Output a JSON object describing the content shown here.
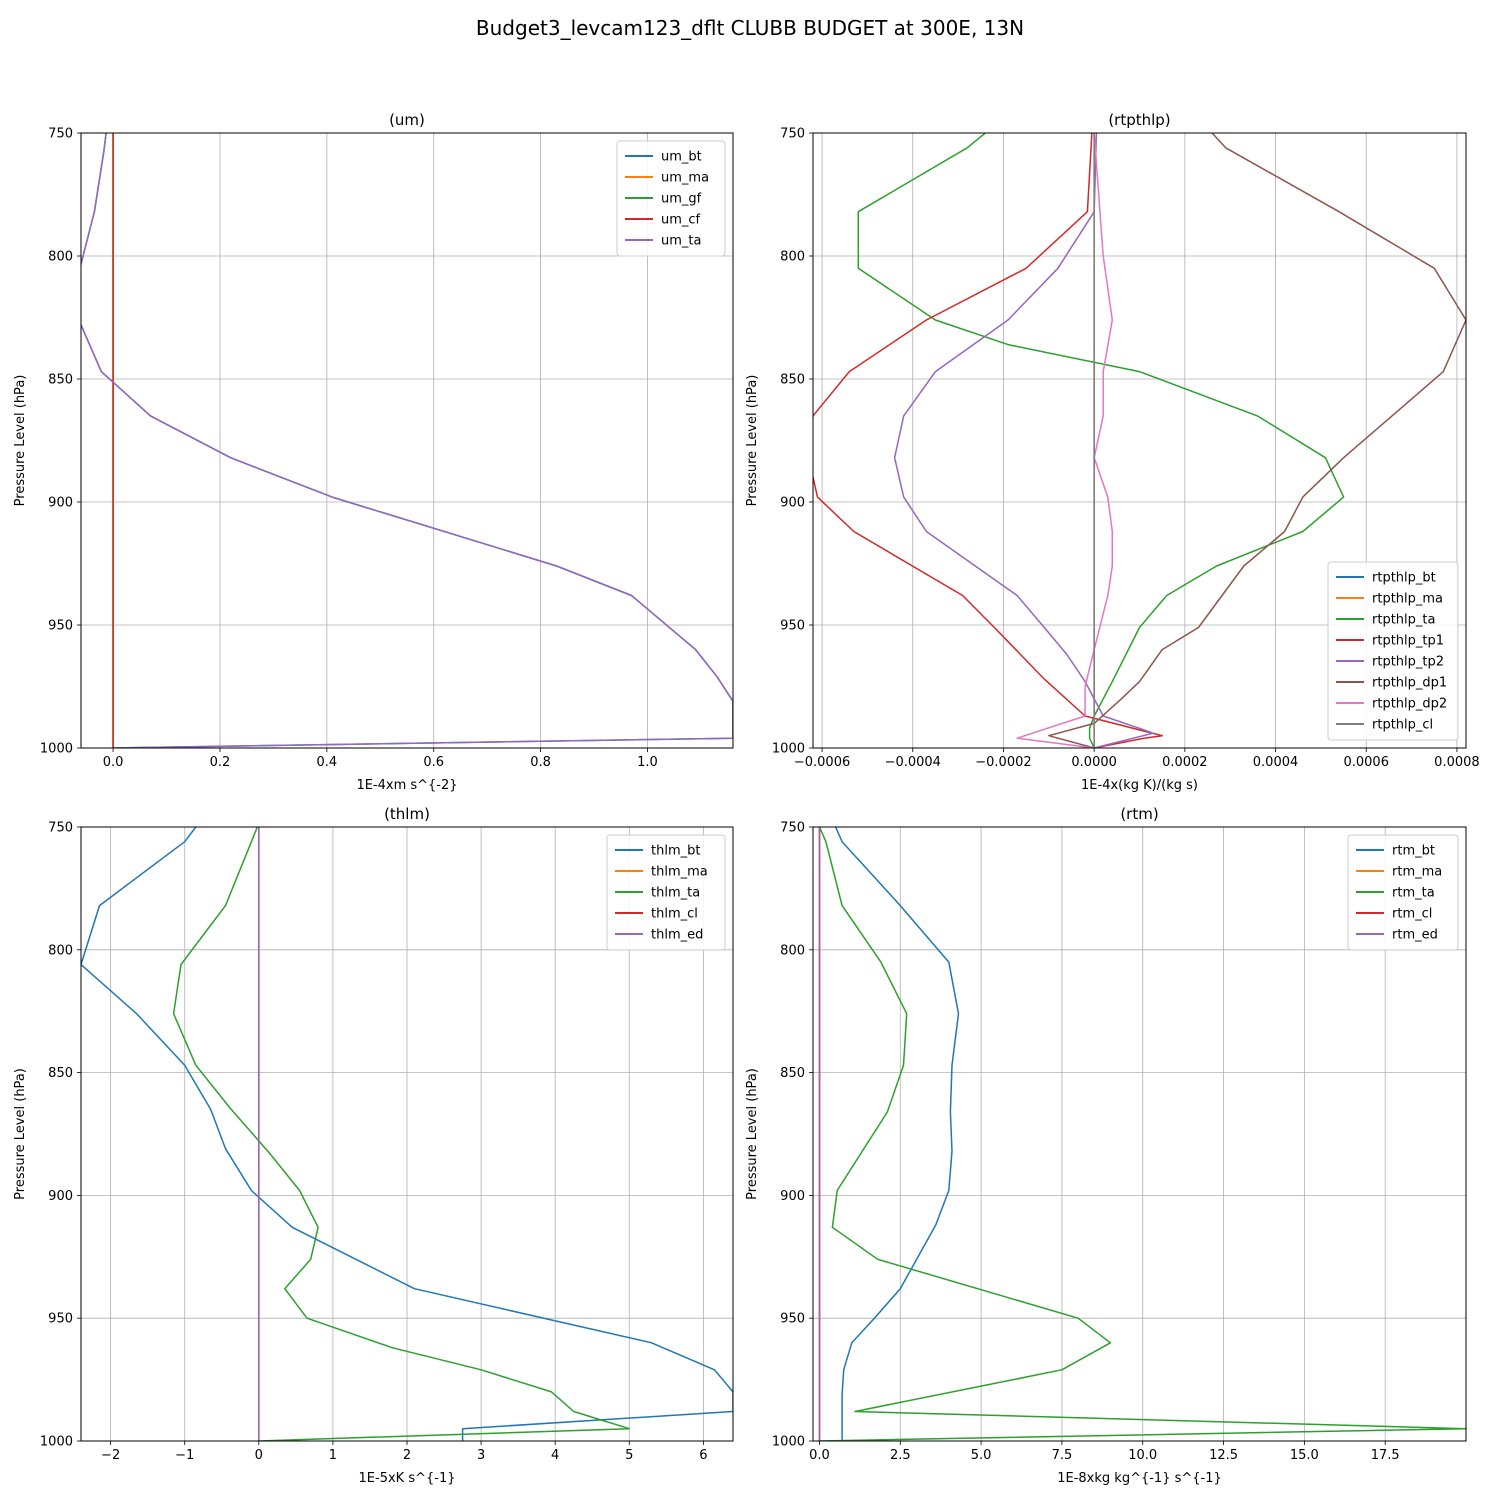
{
  "suptitle": "Budget3_levcam123_dflt CLUBB BUDGET at 300E, 13N",
  "chart_data": [
    {
      "type": "line",
      "title": "(um)",
      "xlabel": "1E-4xm s^{-2}",
      "ylabel": "Pressure Level (hPa)",
      "xlim": [
        -0.06,
        1.16
      ],
      "ylim": [
        1000,
        750
      ],
      "xticks": [
        0.0,
        0.2,
        0.4,
        0.6,
        0.8,
        1.0
      ],
      "xtick_labels": [
        "0.0",
        "0.2",
        "0.4",
        "0.6",
        "0.8",
        "1.0"
      ],
      "yticks": [
        750,
        800,
        850,
        900,
        950,
        1000
      ],
      "ytick_labels": [
        "750",
        "800",
        "850",
        "900",
        "950",
        "1000"
      ],
      "grid": true,
      "legend_position": "upper right",
      "series": [
        {
          "name": "um_bt",
          "color": "#1f77b4",
          "x": [
            -0.013,
            -0.017,
            -0.035,
            -0.062,
            -0.062,
            -0.022,
            0.07,
            0.22,
            0.41,
            0.83,
            0.97,
            1.09,
            1.13,
            1.16,
            1.16,
            0.0
          ],
          "y": [
            750,
            757,
            782,
            805,
            827,
            847,
            865,
            882,
            898,
            926,
            938,
            960,
            971,
            981,
            996,
            1000
          ]
        },
        {
          "name": "um_ma",
          "color": "#ff7f0e",
          "x": [
            0,
            0
          ],
          "y": [
            750,
            1000
          ]
        },
        {
          "name": "um_gf",
          "color": "#2ca02c",
          "x": [
            0,
            0
          ],
          "y": [
            750,
            1000
          ]
        },
        {
          "name": "um_cf",
          "color": "#d62728",
          "x": [
            0,
            0
          ],
          "y": [
            750,
            1000
          ]
        },
        {
          "name": "um_ta",
          "color": "#9467bd",
          "x": [
            -0.013,
            -0.017,
            -0.035,
            -0.062,
            -0.062,
            -0.022,
            0.07,
            0.22,
            0.41,
            0.83,
            0.97,
            1.09,
            1.13,
            1.16,
            1.16,
            0.0
          ],
          "y": [
            750,
            757,
            782,
            805,
            827,
            847,
            865,
            882,
            898,
            926,
            938,
            960,
            971,
            981,
            996,
            1000
          ]
        }
      ]
    },
    {
      "type": "line",
      "title": "(rtpthlp)",
      "xlabel": "1E-4x(kg K)/(kg s)",
      "ylabel": "Pressure Level (hPa)",
      "xlim": [
        -0.00062,
        0.00082
      ],
      "ylim": [
        1000,
        750
      ],
      "xticks": [
        -0.0006,
        -0.0004,
        -0.0002,
        0.0,
        0.0002,
        0.0004,
        0.0006,
        0.0008
      ],
      "xtick_labels": [
        "−0.0006",
        "−0.0004",
        "−0.0002",
        "0.0000",
        "0.0002",
        "0.0004",
        "0.0006",
        "0.0008"
      ],
      "yticks": [
        750,
        800,
        850,
        900,
        950,
        1000
      ],
      "ytick_labels": [
        "750",
        "800",
        "850",
        "900",
        "950",
        "1000"
      ],
      "grid": true,
      "legend_position": "lower right",
      "series": [
        {
          "name": "rtpthlp_bt",
          "color": "#1f77b4",
          "x": [
            0,
            0
          ],
          "y": [
            750,
            1000
          ]
        },
        {
          "name": "rtpthlp_ma",
          "color": "#ff7f0e",
          "x": [
            0,
            0
          ],
          "y": [
            750,
            1000
          ]
        },
        {
          "name": "rtpthlp_ta",
          "color": "#2ca02c",
          "x": [
            -0.00024,
            -0.00028,
            -0.00052,
            -0.00052,
            -0.00035,
            -0.00019,
            0.0001,
            0.00036,
            0.00051,
            0.00055,
            0.00046,
            0.00027,
            0.00016,
            0.0001,
            4e-05,
            0.0,
            -1e-05,
            -1e-05,
            0.0
          ],
          "y": [
            750,
            756,
            782,
            805,
            826,
            836,
            847,
            865,
            882,
            898,
            912,
            926,
            938,
            951,
            973,
            987,
            992,
            996,
            1000
          ]
        },
        {
          "name": "rtpthlp_tp1",
          "color": "#d62728",
          "x": [
            -5e-06,
            -1.5e-05,
            -0.00015,
            -0.00037,
            -0.00054,
            -0.00062,
            -0.00063,
            -0.00061,
            -0.00053,
            -0.00029,
            -0.00022,
            -0.00011,
            -2e-05,
            0.00015,
            0.00011,
            0.0
          ],
          "y": [
            750,
            782,
            805,
            826,
            847,
            865,
            882,
            898,
            912,
            938,
            951,
            972,
            987,
            995,
            996,
            1000
          ]
        },
        {
          "name": "rtpthlp_tp2",
          "color": "#9467bd",
          "x": [
            5e-06,
            0.0,
            -8e-05,
            -0.00019,
            -0.00035,
            -0.00042,
            -0.00044,
            -0.00042,
            -0.00037,
            -0.00017,
            -0.00011,
            -6e-05,
            -2e-05,
            2e-05,
            0.0001,
            0.00013,
            0.0
          ],
          "y": [
            750,
            782,
            805,
            826,
            847,
            865,
            882,
            898,
            912,
            938,
            951,
            962,
            973,
            987,
            992,
            994,
            1000
          ]
        },
        {
          "name": "rtpthlp_dp1",
          "color": "#8c564b",
          "x": [
            0.00026,
            0.00029,
            0.00054,
            0.00075,
            0.00082,
            0.00077,
            0.00055,
            0.00046,
            0.00042,
            0.00033,
            0.00023,
            0.00015,
            0.0001,
            6e-05,
            0.0,
            -0.0001,
            0.0
          ],
          "y": [
            750,
            756,
            782,
            805,
            826,
            847,
            882,
            898,
            912,
            926,
            951,
            960,
            973,
            980,
            990,
            995,
            1000
          ]
        },
        {
          "name": "rtpthlp_dp2",
          "color": "#e377c2",
          "x": [
            0.0,
            2e-05,
            4e-05,
            2e-05,
            2e-05,
            0.0,
            3e-05,
            4e-05,
            4e-05,
            3e-05,
            0.0,
            -2e-05,
            -2e-05,
            -0.00017,
            0.0
          ],
          "y": [
            750,
            800,
            826,
            847,
            865,
            882,
            898,
            912,
            926,
            938,
            960,
            975,
            987,
            996,
            1000
          ]
        },
        {
          "name": "rtpthlp_cl",
          "color": "#7f7f7f",
          "x": [
            0,
            0
          ],
          "y": [
            750,
            1000
          ]
        }
      ]
    },
    {
      "type": "line",
      "title": "(thlm)",
      "xlabel": "1E-5xK s^{-1}",
      "ylabel": "Pressure Level (hPa)",
      "xlim": [
        -2.4,
        6.4
      ],
      "ylim": [
        1000,
        750
      ],
      "xticks": [
        -2,
        -1,
        0,
        1,
        2,
        3,
        4,
        5,
        6
      ],
      "xtick_labels": [
        "−2",
        "−1",
        "0",
        "1",
        "2",
        "3",
        "4",
        "5",
        "6"
      ],
      "yticks": [
        750,
        800,
        850,
        900,
        950,
        1000
      ],
      "ytick_labels": [
        "750",
        "800",
        "850",
        "900",
        "950",
        "1000"
      ],
      "grid": true,
      "legend_position": "upper right",
      "series": [
        {
          "name": "thlm_bt",
          "color": "#1f77b4",
          "x": [
            -0.85,
            -1.0,
            -2.15,
            -2.4,
            -1.65,
            -1.0,
            -0.65,
            -0.45,
            -0.1,
            0.45,
            2.1,
            5.3,
            6.15,
            6.4,
            6.4,
            2.75,
            2.75
          ],
          "y": [
            750,
            756,
            782,
            806,
            826,
            847,
            865,
            881,
            898,
            913,
            938,
            960,
            971,
            980,
            988,
            995,
            1000
          ]
        },
        {
          "name": "thlm_ma",
          "color": "#ff7f0e",
          "x": [
            0,
            0
          ],
          "y": [
            750,
            1000
          ]
        },
        {
          "name": "thlm_ta",
          "color": "#2ca02c",
          "x": [
            -0.02,
            -0.1,
            -0.45,
            -1.05,
            -1.15,
            -0.85,
            -0.4,
            0.15,
            0.55,
            0.8,
            0.7,
            0.35,
            0.65,
            1.8,
            3.0,
            3.95,
            4.25,
            5.0,
            0.0
          ],
          "y": [
            750,
            756,
            782,
            806,
            826,
            847,
            864,
            883,
            898,
            913,
            926,
            938,
            950,
            962,
            971,
            980,
            988,
            995,
            1000
          ]
        },
        {
          "name": "thlm_cl",
          "color": "#d62728",
          "x": [
            0,
            0
          ],
          "y": [
            750,
            1000
          ]
        },
        {
          "name": "thlm_ed",
          "color": "#9467bd",
          "x": [
            0,
            0
          ],
          "y": [
            750,
            1000
          ]
        }
      ]
    },
    {
      "type": "line",
      "title": "(rtm)",
      "xlabel": "1E-8xkg kg^{-1} s^{-1}",
      "ylabel": "Pressure Level (hPa)",
      "xlim": [
        -0.2,
        20.0
      ],
      "ylim": [
        1000,
        750
      ],
      "xticks": [
        0.0,
        2.5,
        5.0,
        7.5,
        10.0,
        12.5,
        15.0,
        17.5
      ],
      "xtick_labels": [
        "0.0",
        "2.5",
        "5.0",
        "7.5",
        "10.0",
        "12.5",
        "15.0",
        "17.5"
      ],
      "yticks": [
        750,
        800,
        850,
        900,
        950,
        1000
      ],
      "ytick_labels": [
        "750",
        "800",
        "850",
        "900",
        "950",
        "1000"
      ],
      "grid": true,
      "legend_position": "upper right",
      "series": [
        {
          "name": "rtm_bt",
          "color": "#1f77b4",
          "x": [
            0.5,
            0.7,
            2.5,
            4.0,
            4.3,
            4.1,
            4.05,
            4.1,
            4.0,
            3.6,
            2.5,
            1.7,
            1.0,
            0.75,
            0.7,
            0.7,
            0.7
          ],
          "y": [
            750,
            756,
            782,
            805,
            826,
            847,
            866,
            882,
            898,
            912,
            938,
            950,
            960,
            971,
            981,
            990,
            1000
          ]
        },
        {
          "name": "rtm_ma",
          "color": "#ff7f0e",
          "x": [
            0,
            0
          ],
          "y": [
            750,
            1000
          ]
        },
        {
          "name": "rtm_ta",
          "color": "#2ca02c",
          "x": [
            0.0,
            0.2,
            0.7,
            1.9,
            2.7,
            2.6,
            2.1,
            0.55,
            0.4,
            1.8,
            8.0,
            9.0,
            7.5,
            1.1,
            20.0,
            0.0
          ],
          "y": [
            750,
            756,
            782,
            805,
            826,
            847,
            866,
            898,
            913,
            926,
            950,
            960,
            971,
            988,
            995,
            1000
          ]
        },
        {
          "name": "rtm_cl",
          "color": "#d62728",
          "x": [
            0,
            0
          ],
          "y": [
            750,
            1000
          ]
        },
        {
          "name": "rtm_ed",
          "color": "#9467bd",
          "x": [
            0,
            0
          ],
          "y": [
            750,
            1000
          ]
        }
      ]
    }
  ]
}
